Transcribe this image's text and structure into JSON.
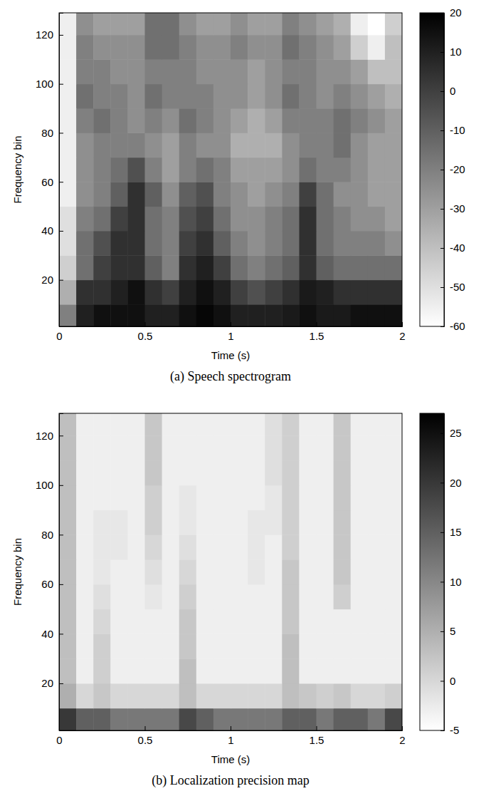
{
  "chart_data": [
    {
      "type": "heatmap",
      "title": "(a) Speech spectrogram",
      "xlabel": "Time (s)",
      "ylabel": "Frequency bin",
      "xlim": [
        0,
        2
      ],
      "xticks": [
        0,
        0.5,
        1,
        1.5,
        2
      ],
      "ylim": [
        1,
        129
      ],
      "yticks": [
        20,
        40,
        60,
        80,
        100,
        120
      ],
      "x": [
        0.05,
        0.15,
        0.25,
        0.35,
        0.45,
        0.55,
        0.65,
        0.75,
        0.85,
        0.95,
        1.05,
        1.15,
        1.25,
        1.35,
        1.45,
        1.55,
        1.65,
        1.75,
        1.85,
        1.95
      ],
      "y": [
        5,
        15,
        25,
        35,
        45,
        55,
        65,
        75,
        85,
        95,
        105,
        115,
        125
      ],
      "z": [
        [
          -20,
          10,
          15,
          15,
          15,
          10,
          10,
          15,
          18,
          15,
          10,
          10,
          10,
          12,
          15,
          12,
          12,
          15,
          15,
          15
        ],
        [
          -35,
          5,
          5,
          10,
          15,
          5,
          0,
          10,
          15,
          10,
          0,
          -5,
          0,
          5,
          12,
          10,
          5,
          5,
          5,
          5
        ],
        [
          -45,
          -15,
          0,
          5,
          5,
          -10,
          -20,
          5,
          10,
          0,
          -15,
          -20,
          -15,
          -10,
          5,
          -10,
          -15,
          -15,
          -15,
          -15
        ],
        [
          -50,
          -15,
          -5,
          5,
          5,
          -15,
          -20,
          0,
          5,
          -10,
          -20,
          -25,
          -20,
          -15,
          5,
          -15,
          -20,
          -20,
          -20,
          -25
        ],
        [
          -50,
          -20,
          -15,
          0,
          5,
          -15,
          -20,
          -5,
          0,
          -15,
          -25,
          -25,
          -20,
          -15,
          5,
          -15,
          -20,
          -25,
          -25,
          -30
        ],
        [
          -55,
          -25,
          -20,
          -10,
          5,
          -10,
          -25,
          -10,
          -5,
          -20,
          -25,
          -30,
          -25,
          -20,
          0,
          -15,
          -25,
          -25,
          -30,
          -30
        ],
        [
          -55,
          -25,
          -20,
          -15,
          -5,
          -20,
          -30,
          -20,
          -15,
          -20,
          -30,
          -30,
          -30,
          -25,
          -15,
          -20,
          -20,
          -25,
          -30,
          -30
        ],
        [
          -55,
          -25,
          -20,
          -20,
          -20,
          -25,
          -30,
          -20,
          -25,
          -25,
          -35,
          -35,
          -35,
          -25,
          -20,
          -20,
          -15,
          -25,
          -30,
          -30
        ],
        [
          -55,
          -20,
          -15,
          -20,
          -25,
          -20,
          -25,
          -15,
          -20,
          -25,
          -30,
          -35,
          -30,
          -20,
          -20,
          -20,
          -15,
          -20,
          -25,
          -30
        ],
        [
          -55,
          -15,
          -20,
          -20,
          -25,
          -15,
          -20,
          -20,
          -20,
          -25,
          -25,
          -30,
          -25,
          -15,
          -20,
          -25,
          -20,
          -25,
          -30,
          -35
        ],
        [
          -55,
          -20,
          -20,
          -25,
          -25,
          -20,
          -20,
          -20,
          -25,
          -25,
          -25,
          -30,
          -25,
          -20,
          -20,
          -25,
          -25,
          -30,
          -40,
          -40
        ],
        [
          -55,
          -20,
          -25,
          -25,
          -25,
          -15,
          -15,
          -20,
          -25,
          -25,
          -20,
          -25,
          -25,
          -15,
          -20,
          -25,
          -30,
          -45,
          -55,
          -40
        ],
        [
          -55,
          -25,
          -30,
          -30,
          -30,
          -15,
          -15,
          -25,
          -30,
          -30,
          -25,
          -30,
          -30,
          -20,
          -25,
          -30,
          -35,
          -55,
          -60,
          -45
        ]
      ],
      "colorbar": {
        "range": [
          -60,
          20
        ],
        "ticks": [
          -60,
          -50,
          -40,
          -30,
          -20,
          -10,
          0,
          10,
          20
        ]
      }
    },
    {
      "type": "heatmap",
      "title": "(b) Localization precision map",
      "xlabel": "Time (s)",
      "ylabel": "Frequency bin",
      "xlim": [
        0,
        2
      ],
      "xticks": [
        0,
        0.5,
        1,
        1.5,
        2
      ],
      "ylim": [
        1,
        129
      ],
      "yticks": [
        20,
        40,
        60,
        80,
        100,
        120
      ],
      "x": [
        0.05,
        0.15,
        0.25,
        0.35,
        0.45,
        0.55,
        0.65,
        0.75,
        0.85,
        0.95,
        1.05,
        1.15,
        1.25,
        1.35,
        1.45,
        1.55,
        1.65,
        1.75,
        1.85,
        1.95
      ],
      "y": [
        5,
        15,
        25,
        35,
        45,
        55,
        65,
        75,
        85,
        95,
        105,
        115,
        125
      ],
      "z": [
        [
          20,
          15,
          15,
          12,
          12,
          12,
          12,
          18,
          15,
          12,
          12,
          12,
          12,
          15,
          15,
          12,
          15,
          15,
          12,
          18
        ],
        [
          5,
          0,
          2,
          0,
          0,
          0,
          0,
          3,
          0,
          0,
          0,
          0,
          0,
          3,
          2,
          1,
          2,
          0,
          0,
          1
        ],
        [
          3,
          -3,
          1,
          -3,
          -3,
          -3,
          -3,
          3,
          -3,
          -3,
          -3,
          -3,
          -3,
          3,
          -3,
          -3,
          -3,
          -3,
          -3,
          -3
        ],
        [
          3,
          -3,
          1,
          -3,
          -3,
          -3,
          -3,
          2,
          -3,
          -3,
          -3,
          -3,
          -3,
          3,
          -3,
          -3,
          -3,
          -3,
          -3,
          -3
        ],
        [
          3,
          -3,
          0,
          -3,
          -3,
          -3,
          -3,
          2,
          -3,
          -3,
          -3,
          -3,
          -3,
          2,
          -3,
          -3,
          -3,
          -3,
          -3,
          -3
        ],
        [
          3,
          -3,
          -1,
          -3,
          -3,
          -2,
          -3,
          1,
          -3,
          -3,
          -3,
          -3,
          -3,
          2,
          -3,
          -3,
          1,
          -3,
          -3,
          -3
        ],
        [
          3,
          -3,
          -2,
          -3,
          -3,
          -1,
          -3,
          0,
          -3,
          -3,
          -3,
          -2,
          -3,
          2,
          -3,
          -3,
          2,
          -3,
          -3,
          -3
        ],
        [
          3,
          -3,
          -2,
          -2,
          -3,
          0,
          -3,
          -1,
          -3,
          -3,
          -3,
          -2,
          -3,
          1,
          -3,
          -3,
          2,
          -3,
          -3,
          -3
        ],
        [
          3,
          -3,
          -2,
          -2,
          -3,
          1,
          -3,
          -2,
          -3,
          -3,
          -3,
          -2,
          -2,
          1,
          -3,
          -3,
          2,
          -3,
          -3,
          -3
        ],
        [
          3,
          -3,
          -3,
          -3,
          -3,
          1,
          -3,
          -2,
          -3,
          -3,
          -3,
          -3,
          -2,
          1,
          -3,
          -3,
          2,
          -3,
          -3,
          -3
        ],
        [
          3,
          -3,
          -3,
          -3,
          -3,
          2,
          -3,
          -3,
          -3,
          -3,
          -3,
          -3,
          -1,
          1,
          -3,
          -3,
          2,
          -3,
          -3,
          -3
        ],
        [
          3,
          -3,
          -3,
          -3,
          -3,
          2,
          -3,
          -3,
          -3,
          -3,
          -3,
          -3,
          -1,
          1,
          -3,
          -3,
          2,
          -3,
          -3,
          -3
        ],
        [
          3,
          -3,
          -3,
          -3,
          -3,
          2,
          -3,
          -3,
          -3,
          -3,
          -3,
          -3,
          -1,
          1,
          -3,
          -3,
          2,
          -3,
          -3,
          -3
        ]
      ],
      "colorbar": {
        "range": [
          -5,
          27
        ],
        "ticks": [
          -5,
          0,
          5,
          10,
          15,
          20,
          25
        ]
      }
    }
  ]
}
